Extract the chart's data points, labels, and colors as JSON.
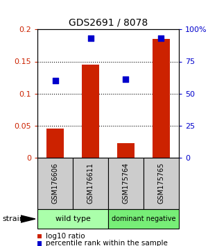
{
  "title": "GDS2691 / 8078",
  "samples": [
    "GSM176606",
    "GSM176611",
    "GSM175764",
    "GSM175765"
  ],
  "log10_ratio": [
    0.045,
    0.145,
    0.022,
    0.185
  ],
  "percentile_rank": [
    60,
    93,
    61,
    93
  ],
  "ylim_left": [
    0,
    0.2
  ],
  "ylim_right": [
    0,
    100
  ],
  "yticks_left": [
    0,
    0.05,
    0.1,
    0.15,
    0.2
  ],
  "yticks_right": [
    0,
    25,
    50,
    75,
    100
  ],
  "ytick_labels_left": [
    "0",
    "0.05",
    "0.1",
    "0.15",
    "0.2"
  ],
  "ytick_labels_right": [
    "0",
    "25",
    "50",
    "75",
    "100%"
  ],
  "bar_color": "#cc2200",
  "dot_color": "#0000cc",
  "groups": [
    {
      "label": "wild type",
      "indices": [
        0,
        1
      ],
      "color": "#aaffaa"
    },
    {
      "label": "dominant negative",
      "indices": [
        2,
        3
      ],
      "color": "#77ee77"
    }
  ],
  "legend_log10": "log10 ratio",
  "legend_pct": "percentile rank within the sample",
  "bar_width": 0.5,
  "dot_size": 35,
  "strain_label": "strain",
  "sample_box_color": "#cccccc",
  "gridline_ticks": [
    0.05,
    0.1,
    0.15
  ]
}
